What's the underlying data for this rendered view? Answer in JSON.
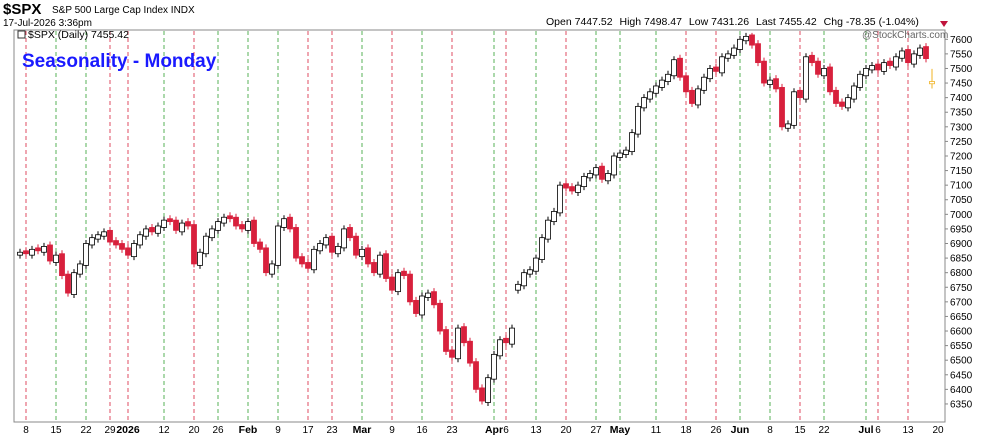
{
  "chart_data": {
    "type": "candlestick",
    "title": "$SPX",
    "subtitle": "S&P 500 Large Cap Index INDX",
    "date": "17-Jul-2026 3:36pm",
    "watermark": "@StockCharts.com",
    "annotation": "Seasonality - Monday",
    "legend": "$SPX (Daily)",
    "ohlc_labels": {
      "open": "Open",
      "high": "High",
      "low": "Low",
      "last": "Last",
      "change": "Chg"
    },
    "change": -78.35,
    "change_pct": {
      "value": -1.04,
      "label": "(-1.04%)"
    },
    "categories": [
      null,
      "8",
      null,
      null,
      null,
      null,
      "15",
      null,
      null,
      null,
      null,
      "22",
      null,
      null,
      null,
      "29",
      null,
      null,
      "2026",
      null,
      null,
      null,
      null,
      null,
      "12",
      null,
      null,
      null,
      null,
      "20",
      null,
      null,
      null,
      "26",
      null,
      null,
      null,
      null,
      "Feb",
      null,
      null,
      null,
      null,
      "9",
      null,
      null,
      null,
      null,
      "17",
      null,
      null,
      null,
      "23",
      null,
      null,
      null,
      null,
      "Mar",
      null,
      null,
      null,
      null,
      "9",
      null,
      null,
      null,
      null,
      "16",
      null,
      null,
      null,
      null,
      "23",
      null,
      null,
      null,
      null,
      null,
      null,
      "Apr",
      null,
      "6",
      null,
      null,
      null,
      null,
      "13",
      null,
      null,
      null,
      null,
      "20",
      null,
      null,
      null,
      null,
      "27",
      null,
      null,
      null,
      "May",
      null,
      null,
      null,
      null,
      null,
      "11",
      null,
      null,
      null,
      null,
      "18",
      null,
      null,
      null,
      null,
      "26",
      null,
      null,
      null,
      "Jun",
      null,
      null,
      null,
      null,
      "8",
      null,
      null,
      null,
      null,
      "15",
      null,
      null,
      null,
      "22",
      null,
      null,
      null,
      null,
      null,
      null,
      "Jul",
      null,
      "6",
      null,
      null,
      null,
      null,
      "13",
      null,
      null,
      null,
      null,
      "20"
    ],
    "open": [
      6860,
      6875,
      6860,
      6885,
      6870,
      6895,
      6835,
      6865,
      6795,
      6725,
      6795,
      6825,
      6895,
      6915,
      6925,
      6945,
      6910,
      6900,
      6885,
      6855,
      6895,
      6925,
      6955,
      6935,
      6955,
      6985,
      6980,
      6940,
      6975,
      6965,
      6825,
      6865,
      6920,
      6945,
      6970,
      6995,
      6990,
      6965,
      6945,
      6980,
      6905,
      6885,
      6795,
      6825,
      6955,
      6990,
      6955,
      6855,
      6835,
      6810,
      6875,
      6895,
      6925,
      6865,
      6885,
      6955,
      6925,
      6855,
      6885,
      6835,
      6795,
      6865,
      6785,
      6735,
      6805,
      6795,
      6705,
      6655,
      6715,
      6735,
      6695,
      6605,
      6535,
      6505,
      6615,
      6565,
      6495,
      6405,
      6355,
      6435,
      6515,
      6575,
      6555,
      6740,
      6755,
      6795,
      6805,
      6845,
      6915,
      6975,
      7005,
      7105,
      7095,
      7075,
      7095,
      7125,
      7135,
      7165,
      7115,
      7135,
      7195,
      7205,
      7215,
      7275,
      7365,
      7395,
      7415,
      7435,
      7455,
      7475,
      7535,
      7475,
      7425,
      7375,
      7425,
      7465,
      7505,
      7485,
      7535,
      7545,
      7565,
      7595,
      7615,
      7585,
      7525,
      7445,
      7465,
      7435,
      7295,
      7305,
      7425,
      7395,
      7545,
      7525,
      7475,
      7505,
      7425,
      7385,
      7365,
      7395,
      7435,
      7475,
      7495,
      7515,
      7490,
      7525,
      7505,
      7535,
      7565,
      7515,
      7545,
      7575,
      7447.52,
      null
    ],
    "high": [
      6882,
      6887,
      6892,
      6897,
      6902,
      6907,
      6872,
      6877,
      6807,
      6812,
      6842,
      6912,
      6932,
      6942,
      6952,
      6957,
      6922,
      6912,
      6897,
      6912,
      6942,
      6962,
      6967,
      6972,
      6992,
      6997,
      6992,
      6982,
      6987,
      6977,
      6882,
      6937,
      6962,
      6987,
      7002,
      7007,
      7002,
      6977,
      6987,
      6992,
      6917,
      6897,
      6842,
      6972,
      6997,
      7002,
      6967,
      6867,
      6847,
      6892,
      6912,
      6932,
      6937,
      6902,
      6962,
      6967,
      6937,
      6892,
      6897,
      6847,
      6872,
      6877,
      6797,
      6812,
      6817,
      6807,
      6717,
      6732,
      6742,
      6747,
      6707,
      6617,
      6547,
      6622,
      6627,
      6577,
      6507,
      6417,
      6452,
      6532,
      6582,
      6587,
      6622,
      6772,
      6812,
      6822,
      6862,
      6932,
      6992,
      7022,
      7112,
      7117,
      7107,
      7112,
      7142,
      7152,
      7172,
      7177,
      7152,
      7212,
      7222,
      7232,
      7292,
      7382,
      7412,
      7432,
      7452,
      7472,
      7492,
      7542,
      7547,
      7487,
      7437,
      7442,
      7482,
      7512,
      7517,
      7552,
      7562,
      7582,
      7612,
      7622,
      7622,
      7597,
      7537,
      7472,
      7477,
      7447,
      7322,
      7432,
      7437,
      7552,
      7557,
      7537,
      7512,
      7517,
      7437,
      7397,
      7412,
      7452,
      7492,
      7512,
      7522,
      7527,
      7532,
      7537,
      7552,
      7572,
      7577,
      7562,
      7582,
      7587,
      7498.47,
      null
    ],
    "low": [
      6848,
      6853,
      6848,
      6863,
      6858,
      6828,
      6823,
      6778,
      6718,
      6713,
      6783,
      6813,
      6883,
      6903,
      6913,
      6893,
      6883,
      6868,
      6848,
      6843,
      6883,
      6913,
      6928,
      6923,
      6943,
      6963,
      6933,
      6928,
      6948,
      6818,
      6813,
      6853,
      6908,
      6933,
      6958,
      6973,
      6948,
      6938,
      6933,
      6888,
      6868,
      6788,
      6783,
      6813,
      6943,
      6938,
      6838,
      6818,
      6803,
      6798,
      6863,
      6883,
      6858,
      6853,
      6873,
      6908,
      6848,
      6843,
      6818,
      6788,
      6783,
      6768,
      6728,
      6723,
      6778,
      6688,
      6648,
      6643,
      6703,
      6678,
      6588,
      6518,
      6498,
      6493,
      6548,
      6478,
      6388,
      6348,
      6343,
      6423,
      6503,
      6548,
      6543,
      6728,
      6743,
      6783,
      6793,
      6833,
      6903,
      6963,
      6993,
      7078,
      7068,
      7063,
      7083,
      7113,
      7123,
      7108,
      7103,
      7123,
      7183,
      7193,
      7203,
      7263,
      7353,
      7383,
      7403,
      7423,
      7443,
      7463,
      7458,
      7408,
      7368,
      7363,
      7413,
      7453,
      7478,
      7473,
      7523,
      7533,
      7553,
      7583,
      7568,
      7508,
      7438,
      7433,
      7418,
      7288,
      7283,
      7293,
      7388,
      7383,
      7508,
      7468,
      7463,
      7408,
      7368,
      7358,
      7353,
      7383,
      7423,
      7463,
      7483,
      7483,
      7478,
      7498,
      7493,
      7523,
      7508,
      7503,
      7533,
      7521,
      7431.26,
      null
    ],
    "close": [
      6870,
      6865,
      6880,
      6875,
      6890,
      6840,
      6860,
      6790,
      6730,
      6800,
      6830,
      6900,
      6920,
      6930,
      6940,
      6905,
      6895,
      6880,
      6860,
      6900,
      6930,
      6950,
      6940,
      6960,
      6980,
      6975,
      6945,
      6970,
      6960,
      6830,
      6870,
      6925,
      6950,
      6975,
      6990,
      6985,
      6960,
      6950,
      6975,
      6900,
      6880,
      6800,
      6830,
      6960,
      6985,
      6950,
      6850,
      6830,
      6815,
      6880,
      6900,
      6920,
      6870,
      6890,
      6950,
      6920,
      6860,
      6880,
      6830,
      6800,
      6860,
      6780,
      6740,
      6800,
      6790,
      6700,
      6660,
      6720,
      6730,
      6690,
      6600,
      6530,
      6510,
      6610,
      6560,
      6490,
      6400,
      6360,
      6440,
      6520,
      6570,
      6560,
      6610,
      6760,
      6800,
      6810,
      6850,
      6920,
      6980,
      7010,
      7100,
      7090,
      7080,
      7100,
      7130,
      7140,
      7160,
      7120,
      7140,
      7200,
      7210,
      7220,
      7280,
      7370,
      7400,
      7420,
      7440,
      7460,
      7480,
      7530,
      7470,
      7420,
      7380,
      7430,
      7470,
      7500,
      7490,
      7540,
      7550,
      7570,
      7600,
      7610,
      7580,
      7520,
      7450,
      7460,
      7430,
      7300,
      7310,
      7420,
      7400,
      7540,
      7520,
      7480,
      7500,
      7420,
      7380,
      7370,
      7400,
      7440,
      7480,
      7500,
      7510,
      7495,
      7520,
      7510,
      7540,
      7560,
      7520,
      7550,
      7570,
      7533.77,
      7455.42,
      null
    ],
    "ylim": [
      6295,
      7625
    ],
    "yticks": [
      6350,
      6400,
      6450,
      6500,
      6550,
      6600,
      6650,
      6700,
      6750,
      6800,
      6850,
      6900,
      6950,
      7000,
      7050,
      7100,
      7150,
      7200,
      7250,
      7300,
      7350,
      7400,
      7450,
      7500,
      7550,
      7600
    ],
    "up_color": "#000000",
    "down_color": "#d8203c",
    "last_color": "#f0b323",
    "up_line_color": "#2e9e2e",
    "down_line_color": "#d8203c",
    "annotation_color": "#1a1aff",
    "grid": false
  }
}
